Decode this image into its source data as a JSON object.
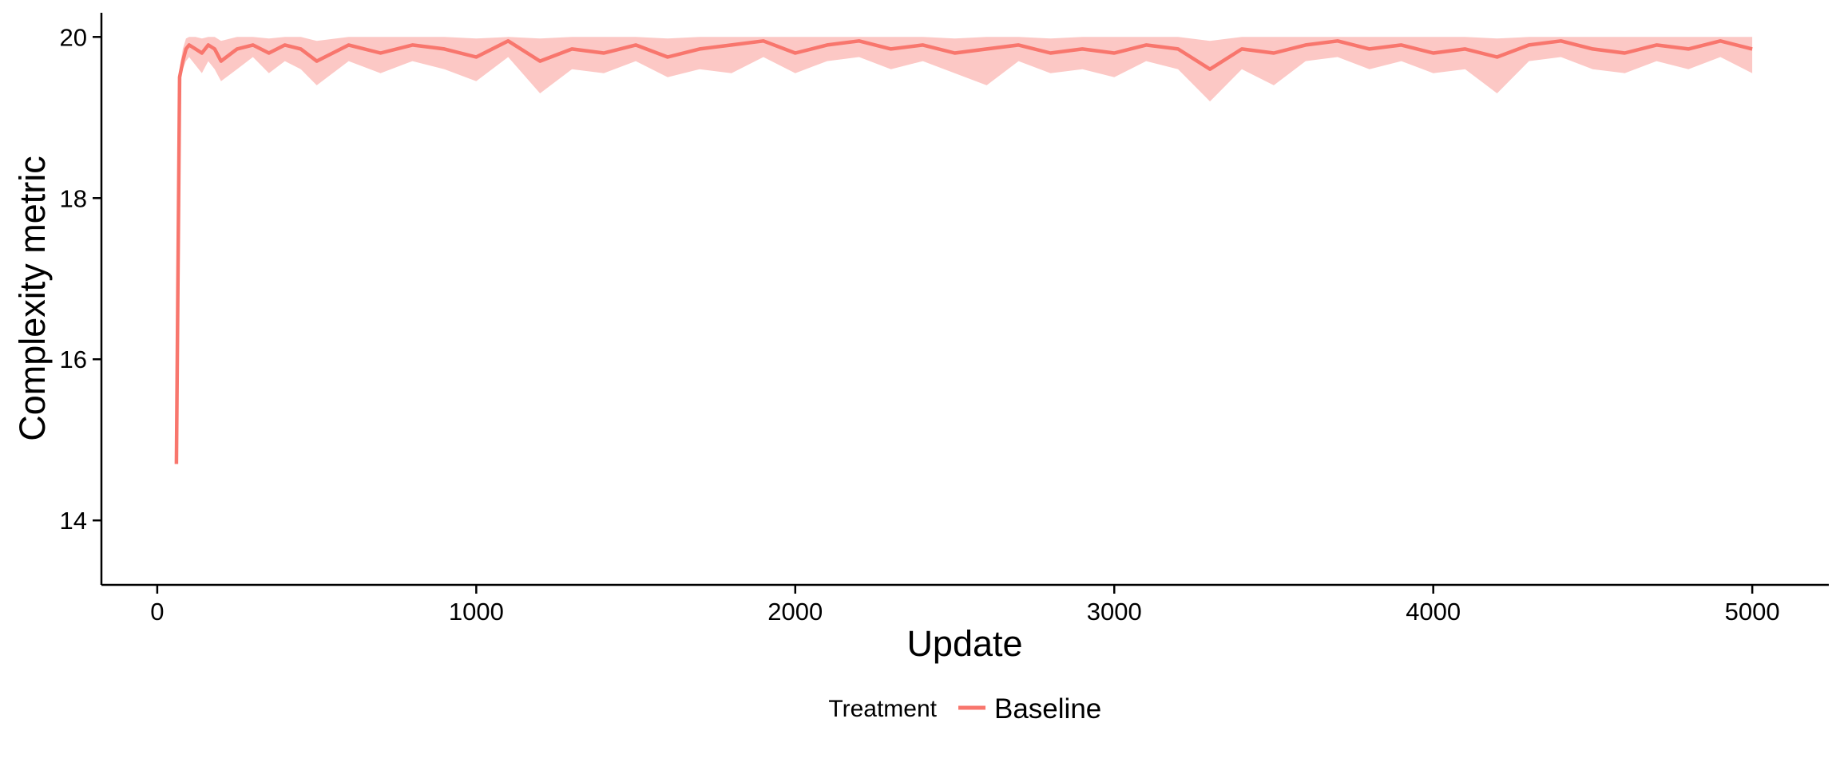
{
  "chart_data": {
    "type": "line",
    "title": "",
    "xlabel": "Update",
    "ylabel": "Complexity metric",
    "xlim": [
      -175,
      5240
    ],
    "ylim": [
      13.2,
      20.3
    ],
    "x_ticks": [
      0,
      1000,
      2000,
      3000,
      4000,
      5000
    ],
    "x_tick_labels": [
      "0",
      "1000",
      "2000",
      "3000",
      "4000",
      "5000"
    ],
    "y_ticks": [
      14,
      16,
      18,
      20
    ],
    "y_tick_labels": [
      "14",
      "16",
      "18",
      "20"
    ],
    "grid": false,
    "legend": {
      "title": "Treatment",
      "position": "bottom",
      "entries": [
        "Baseline"
      ]
    },
    "colors": {
      "line": "#F8766D",
      "band": "#F8766D",
      "band_opacity": 0.4
    },
    "band": "shaded interval around mean",
    "series": [
      {
        "name": "Baseline",
        "x": [
          60,
          70,
          80,
          90,
          100,
          120,
          140,
          160,
          180,
          200,
          250,
          300,
          350,
          400,
          450,
          500,
          600,
          700,
          800,
          900,
          1000,
          1100,
          1200,
          1300,
          1400,
          1500,
          1600,
          1700,
          1800,
          1900,
          2000,
          2100,
          2200,
          2300,
          2400,
          2500,
          2600,
          2700,
          2800,
          2900,
          3000,
          3100,
          3200,
          3300,
          3400,
          3500,
          3600,
          3700,
          3800,
          3900,
          4000,
          4100,
          4200,
          4300,
          4400,
          4500,
          4600,
          4700,
          4800,
          4900,
          5000
        ],
        "y": [
          14.7,
          19.5,
          19.7,
          19.85,
          19.9,
          19.85,
          19.8,
          19.9,
          19.85,
          19.7,
          19.85,
          19.9,
          19.8,
          19.9,
          19.85,
          19.7,
          19.9,
          19.8,
          19.9,
          19.85,
          19.75,
          19.95,
          19.7,
          19.85,
          19.8,
          19.9,
          19.75,
          19.85,
          19.9,
          19.95,
          19.8,
          19.9,
          19.95,
          19.85,
          19.9,
          19.8,
          19.85,
          19.9,
          19.8,
          19.85,
          19.8,
          19.9,
          19.85,
          19.6,
          19.85,
          19.8,
          19.9,
          19.95,
          19.85,
          19.9,
          19.8,
          19.85,
          19.75,
          19.9,
          19.95,
          19.85,
          19.8,
          19.9,
          19.85,
          19.95,
          19.85
        ],
        "lower": [
          14.7,
          19.5,
          19.6,
          19.7,
          19.75,
          19.65,
          19.55,
          19.7,
          19.6,
          19.45,
          19.6,
          19.75,
          19.55,
          19.7,
          19.6,
          19.4,
          19.7,
          19.55,
          19.7,
          19.6,
          19.45,
          19.75,
          19.3,
          19.6,
          19.55,
          19.7,
          19.5,
          19.6,
          19.55,
          19.75,
          19.55,
          19.7,
          19.75,
          19.6,
          19.7,
          19.55,
          19.4,
          19.7,
          19.55,
          19.6,
          19.5,
          19.7,
          19.6,
          19.2,
          19.6,
          19.4,
          19.7,
          19.75,
          19.6,
          19.7,
          19.55,
          19.6,
          19.3,
          19.7,
          19.75,
          19.6,
          19.55,
          19.7,
          19.6,
          19.75,
          19.55
        ],
        "upper": [
          14.7,
          19.6,
          19.85,
          19.98,
          20.0,
          20.0,
          19.98,
          20.0,
          20.0,
          19.95,
          20.0,
          20.0,
          19.98,
          20.0,
          20.0,
          19.95,
          20.0,
          20.0,
          20.0,
          20.0,
          19.98,
          20.0,
          19.98,
          20.0,
          20.0,
          20.0,
          19.98,
          20.0,
          20.0,
          20.0,
          20.0,
          20.0,
          20.0,
          20.0,
          20.0,
          19.98,
          20.0,
          20.0,
          19.98,
          20.0,
          20.0,
          20.0,
          20.0,
          19.95,
          20.0,
          20.0,
          20.0,
          20.0,
          20.0,
          20.0,
          20.0,
          20.0,
          19.98,
          20.0,
          20.0,
          20.0,
          20.0,
          20.0,
          20.0,
          20.0,
          20.0
        ]
      }
    ]
  }
}
